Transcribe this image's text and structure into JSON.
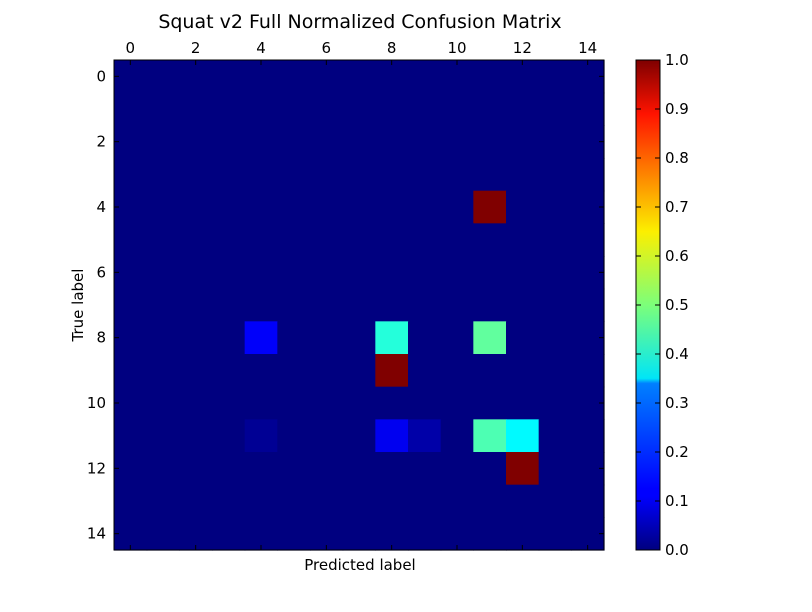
{
  "chart_data": {
    "type": "heatmap",
    "title": "Squat v2 Full Normalized Confusion Matrix",
    "xlabel": "Predicted label",
    "ylabel": "True label",
    "x_ticks": [
      0,
      2,
      4,
      6,
      8,
      10,
      12,
      14
    ],
    "y_ticks": [
      0,
      2,
      4,
      6,
      8,
      10,
      12,
      14
    ],
    "x_tick_position": "top",
    "n_rows": 15,
    "n_cols": 15,
    "colormap": "jet",
    "vmin": 0.0,
    "vmax": 1.0,
    "colorbar_ticks": [
      "0.0",
      "0.1",
      "0.2",
      "0.3",
      "0.4",
      "0.5",
      "0.6",
      "0.7",
      "0.8",
      "0.9",
      "1.0"
    ],
    "default_value": 0.0,
    "cells": [
      {
        "row": 4,
        "col": 11,
        "value": 1.0
      },
      {
        "row": 8,
        "col": 4,
        "value": 0.12
      },
      {
        "row": 8,
        "col": 8,
        "value": 0.41
      },
      {
        "row": 8,
        "col": 11,
        "value": 0.47
      },
      {
        "row": 9,
        "col": 8,
        "value": 1.0
      },
      {
        "row": 11,
        "col": 4,
        "value": 0.02
      },
      {
        "row": 11,
        "col": 8,
        "value": 0.11
      },
      {
        "row": 11,
        "col": 9,
        "value": 0.04
      },
      {
        "row": 11,
        "col": 11,
        "value": 0.45
      },
      {
        "row": 11,
        "col": 12,
        "value": 0.37
      },
      {
        "row": 12,
        "col": 12,
        "value": 1.0
      }
    ]
  }
}
